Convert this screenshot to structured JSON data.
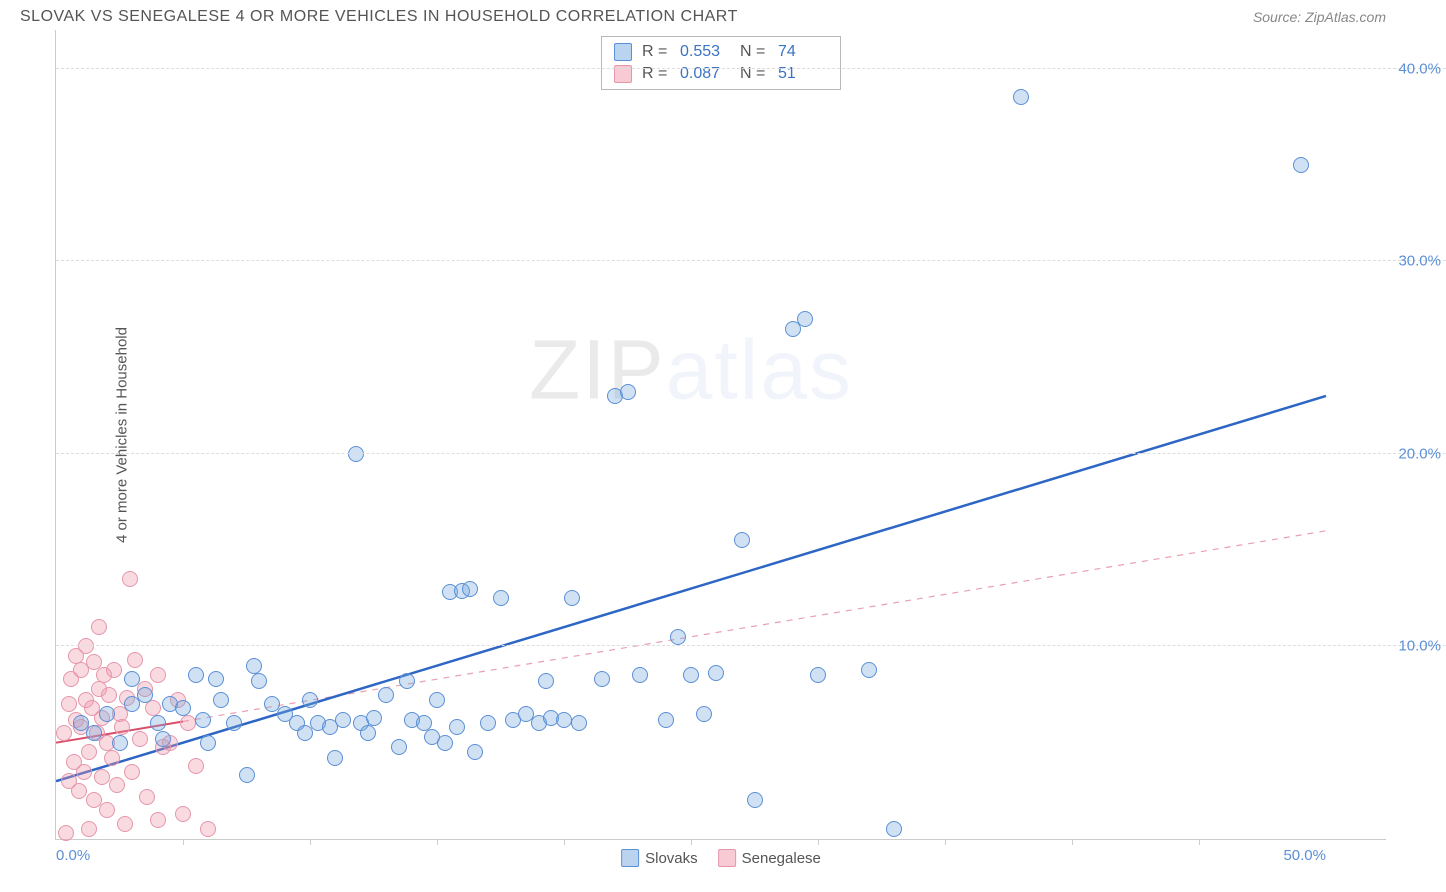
{
  "header": {
    "title": "SLOVAK VS SENEGALESE 4 OR MORE VEHICLES IN HOUSEHOLD CORRELATION CHART",
    "source": "Source: ZipAtlas.com"
  },
  "chart": {
    "type": "scatter",
    "ylabel": "4 or more Vehicles in Household",
    "xlim": [
      0,
      50
    ],
    "ylim": [
      0,
      42
    ],
    "yticks": [
      {
        "value": 10,
        "label": "10.0%"
      },
      {
        "value": 20,
        "label": "20.0%"
      },
      {
        "value": 30,
        "label": "30.0%"
      },
      {
        "value": 40,
        "label": "40.0%"
      }
    ],
    "xticks_minor": [
      5,
      10,
      15,
      20,
      25,
      30,
      35,
      40,
      45
    ],
    "xticks": [
      {
        "value": 0,
        "label": "0.0%"
      },
      {
        "value": 50,
        "label": "50.0%"
      }
    ],
    "watermark": "ZIPatlas",
    "background_color": "#ffffff",
    "grid_color": "#dddddd",
    "series_a": {
      "name": "Slovaks",
      "color_fill": "rgba(118,168,222,0.35)",
      "color_stroke": "#5b8fd6",
      "R": "0.553",
      "N": "74",
      "trend": {
        "x1": 0,
        "y1": 3.0,
        "x2": 50,
        "y2": 23.0,
        "dash": false,
        "color": "#2d66c4",
        "width": 2.5
      },
      "trend_solid_end_x": 2.5,
      "points": [
        [
          1,
          6
        ],
        [
          1.5,
          5.5
        ],
        [
          2,
          6.5
        ],
        [
          2.5,
          5
        ],
        [
          3,
          7
        ],
        [
          3.5,
          7.5
        ],
        [
          4,
          6
        ],
        [
          4.5,
          7
        ],
        [
          5,
          6.8
        ],
        [
          5.5,
          8.5
        ],
        [
          6,
          5
        ],
        [
          6.5,
          7.2
        ],
        [
          7,
          6
        ],
        [
          7.5,
          3.3
        ],
        [
          8,
          8.2
        ],
        [
          8.5,
          7
        ],
        [
          9,
          6.5
        ],
        [
          9.5,
          6
        ],
        [
          10,
          7.2
        ],
        [
          10.3,
          6
        ],
        [
          10.8,
          5.8
        ],
        [
          11,
          4.2
        ],
        [
          11.3,
          6.2
        ],
        [
          11.8,
          20
        ],
        [
          12,
          6
        ],
        [
          12.5,
          6.3
        ],
        [
          13,
          7.5
        ],
        [
          13.5,
          4.8
        ],
        [
          14,
          6.2
        ],
        [
          14.5,
          6
        ],
        [
          15,
          7.2
        ],
        [
          15.3,
          5
        ],
        [
          15.5,
          12.8
        ],
        [
          16,
          12.9
        ],
        [
          16.3,
          13
        ],
        [
          16.5,
          4.5
        ],
        [
          17,
          6
        ],
        [
          17.5,
          12.5
        ],
        [
          18,
          6.2
        ],
        [
          18.5,
          6.5
        ],
        [
          19,
          6
        ],
        [
          19.5,
          6.3
        ],
        [
          20,
          6.2
        ],
        [
          20.3,
          12.5
        ],
        [
          20.6,
          6
        ],
        [
          21.5,
          8.3
        ],
        [
          22,
          23
        ],
        [
          22.5,
          23.2
        ],
        [
          23,
          8.5
        ],
        [
          24,
          6.2
        ],
        [
          24.5,
          10.5
        ],
        [
          25,
          8.5
        ],
        [
          25.5,
          6.5
        ],
        [
          26,
          8.6
        ],
        [
          27,
          15.5
        ],
        [
          27.5,
          2
        ],
        [
          29,
          26.5
        ],
        [
          29.5,
          27
        ],
        [
          30,
          8.5
        ],
        [
          32,
          8.8
        ],
        [
          33,
          0.5
        ],
        [
          38,
          38.5
        ],
        [
          49,
          35
        ],
        [
          3,
          8.3
        ],
        [
          4.2,
          5.2
        ],
        [
          5.8,
          6.2
        ],
        [
          6.3,
          8.3
        ],
        [
          7.8,
          9
        ],
        [
          9.8,
          5.5
        ],
        [
          12.3,
          5.5
        ],
        [
          13.8,
          8.2
        ],
        [
          14.8,
          5.3
        ],
        [
          15.8,
          5.8
        ],
        [
          19.3,
          8.2
        ]
      ]
    },
    "series_b": {
      "name": "Senegalese",
      "color_fill": "rgba(240,150,170,0.35)",
      "color_stroke": "#e596ab",
      "R": "0.087",
      "N": "51",
      "trend": {
        "x1": 0,
        "y1": 5.0,
        "x2": 50,
        "y2": 16.0,
        "dash": true,
        "color": "#e8a0b0",
        "width": 1.2
      },
      "trend_solid_end_x": 5,
      "points": [
        [
          0.3,
          5.5
        ],
        [
          0.5,
          7
        ],
        [
          0.5,
          3
        ],
        [
          0.6,
          8.3
        ],
        [
          0.7,
          4
        ],
        [
          0.8,
          6.2
        ],
        [
          0.8,
          9.5
        ],
        [
          0.9,
          2.5
        ],
        [
          1.0,
          5.8
        ],
        [
          1.0,
          8.8
        ],
        [
          1.1,
          3.5
        ],
        [
          1.2,
          7.2
        ],
        [
          1.2,
          10
        ],
        [
          1.3,
          4.5
        ],
        [
          1.4,
          6.8
        ],
        [
          1.5,
          2
        ],
        [
          1.5,
          9.2
        ],
        [
          1.6,
          5.5
        ],
        [
          1.7,
          7.8
        ],
        [
          1.8,
          3.2
        ],
        [
          1.8,
          6.3
        ],
        [
          1.9,
          8.5
        ],
        [
          2.0,
          1.5
        ],
        [
          2.0,
          5.0
        ],
        [
          2.1,
          7.5
        ],
        [
          2.2,
          4.2
        ],
        [
          2.3,
          8.8
        ],
        [
          2.4,
          2.8
        ],
        [
          2.5,
          6.5
        ],
        [
          2.6,
          5.8
        ],
        [
          2.7,
          0.8
        ],
        [
          2.8,
          7.3
        ],
        [
          2.9,
          13.5
        ],
        [
          3.0,
          3.5
        ],
        [
          3.1,
          9.3
        ],
        [
          3.3,
          5.2
        ],
        [
          3.5,
          7.8
        ],
        [
          3.6,
          2.2
        ],
        [
          3.8,
          6.8
        ],
        [
          4.0,
          1.0
        ],
        [
          4.0,
          8.5
        ],
        [
          4.2,
          4.8
        ],
        [
          4.5,
          5.0
        ],
        [
          4.8,
          7.2
        ],
        [
          5.0,
          1.3
        ],
        [
          5.2,
          6.0
        ],
        [
          5.5,
          3.8
        ],
        [
          6.0,
          0.5
        ],
        [
          0.4,
          0.3
        ],
        [
          1.3,
          0.5
        ],
        [
          1.7,
          11
        ]
      ]
    },
    "legend_bottom": [
      {
        "swatch": "a",
        "label": "Slovaks"
      },
      {
        "swatch": "b",
        "label": "Senegalese"
      }
    ]
  }
}
